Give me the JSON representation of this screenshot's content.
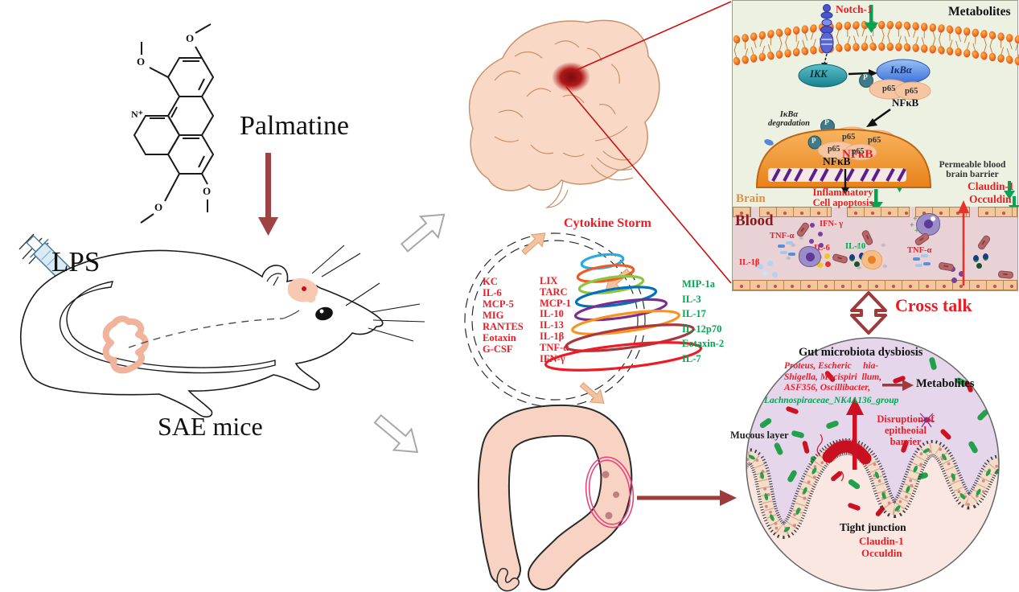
{
  "left_area": {
    "palmatine": "Palmatine",
    "lps": "LPS",
    "sae_mice": "SAE mice"
  },
  "molecule": {
    "o": "O",
    "n_plus": "N⁺"
  },
  "cytokine_storm": {
    "title": "Cytokine Storm",
    "col1": [
      "KC",
      "IL-6",
      "MCP-5",
      "MIG",
      "RANTES",
      "Eotaxin",
      "G-CSF"
    ],
    "col2": [
      "LIX",
      "TARC",
      "MCP-1",
      "IL-10",
      "IL-13",
      "IL-1β",
      "TNF-α",
      "IFN-γ"
    ],
    "col3": [
      "MIP-1a",
      "IL-3",
      "IL-17",
      "IL-12p70",
      "Eotaxin-2",
      "IL-7"
    ]
  },
  "pathway_panel": {
    "notch": "Notch-1",
    "metabolites": "Metabolites",
    "ikk": "IKK",
    "ikba": "IκBα",
    "p": "P",
    "p65": "p65",
    "nfkb": "NFκB",
    "nfkb_active": "NFκB",
    "nfkb_nuclear": "NFκB",
    "degradation_l1": "IκBα",
    "degradation_l2": "degradation",
    "inflammatory_l1": "Inflammatory",
    "inflammatory_l2": "Cell apoptosis",
    "permeable_l1": "Permeable blood",
    "permeable_l2": "brain barrier",
    "claudin": "Claudin-1",
    "occuldin": "Occuldin",
    "brain": "Brain",
    "blood": "Blood",
    "ifn_g": "IFN- γ",
    "tnf_a1": "TNF-α",
    "il_1b": "IL-1β",
    "il_6": "IL-6",
    "il_10": "IL-10",
    "tnf_a2": "TNF-α"
  },
  "crosstalk": {
    "label": "Cross talk"
  },
  "gut_panel": {
    "title": "Gut microbiota dysbiosis",
    "bacteria_red_l1": "Proteus, Escheric     hia-",
    "bacteria_red_l2": "Shigella, Mucispiri  llum,",
    "bacteria_red_l3": "ASF356, Oscillibacter,",
    "bacteria_green": "Lachnospiraceae_NK4A136_group",
    "metabolites": "Metabolites",
    "mucous_layer": "Mucous layer",
    "disruption_l1": "Disruption of",
    "disruption_l2": "epitheoial",
    "disruption_l3": "barrier",
    "tight_junction": "Tight junction",
    "claudin": "Claudin-1",
    "occuldin": "Occuldin"
  },
  "colors": {
    "red_text": "#ed1c24",
    "green_text": "#00a651",
    "dark_red_arrow": "#9e4343",
    "green_arrow": "#00a651",
    "panel_bg": "#edf1e2",
    "blood_bg": "#e9d2d6",
    "brain_label": "#d4924e",
    "blood_label": "#8b1a1a",
    "lumen_lavender": "#e6d6ec",
    "gut_pink": "#fbe7e2",
    "nucleus_orange": "#f19432",
    "membrane_orange": "#f05a14",
    "bacteria_green": "#22a04a",
    "bacteria_red": "#cc1122"
  }
}
